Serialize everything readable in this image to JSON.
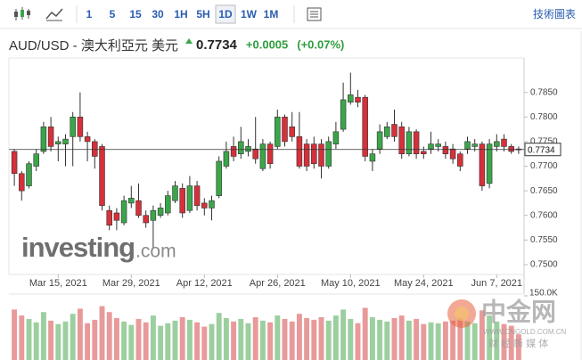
{
  "toolbar": {
    "intervals": [
      "1",
      "5",
      "15",
      "30",
      "1H",
      "5H",
      "1D",
      "1W",
      "1M"
    ],
    "selected": 6,
    "link": "技術圖表"
  },
  "header": {
    "pair": "AUD/USD - 澳大利亞元 美元",
    "price": 0.7734,
    "change": "+0.0005",
    "change_pct": "(+0.07%)"
  },
  "watermarks": {
    "investing": "investing",
    "investing_suffix": ".com",
    "cngold": "中金网",
    "cngold_url": "WWW.CNGOLD.COM.CN",
    "cngold_tagline": "财 经 新 媒 体"
  },
  "chart_data": {
    "type": "candlestick",
    "categories": [
      null,
      null,
      null,
      null,
      null,
      null,
      "Mar 15, 2021",
      null,
      null,
      null,
      null,
      null,
      null,
      null,
      null,
      null,
      "Mar 29, 2021",
      null,
      null,
      null,
      null,
      null,
      null,
      null,
      null,
      null,
      "Apr 12, 2021",
      null,
      null,
      null,
      null,
      null,
      null,
      null,
      null,
      null,
      "Apr 26, 2021",
      null,
      null,
      null,
      null,
      null,
      null,
      null,
      null,
      null,
      "May 10, 2021",
      null,
      null,
      null,
      null,
      null,
      null,
      null,
      null,
      null,
      "May 24, 2021",
      null,
      null,
      null,
      null,
      null,
      null,
      null,
      null,
      null,
      "Jun 7, 2021",
      null,
      null,
      null
    ],
    "open": [
      0.773,
      0.7685,
      0.766,
      0.77,
      0.773,
      0.778,
      0.7745,
      0.7745,
      0.776,
      0.78,
      0.776,
      0.775,
      0.774,
      0.761,
      0.7605,
      0.7585,
      0.7625,
      0.763,
      0.76,
      0.759,
      0.76,
      0.7605,
      0.763,
      0.7655,
      0.761,
      0.766,
      0.7625,
      0.7615,
      0.764,
      0.77,
      0.774,
      0.7725,
      0.773,
      0.7735,
      0.7695,
      0.7745,
      0.774,
      0.78,
      0.778,
      0.776,
      0.7745,
      0.7745,
      0.7745,
      0.77,
      0.7745,
      0.7775,
      0.783,
      0.784,
      0.784,
      0.771,
      0.7735,
      0.776,
      0.7785,
      0.778,
      0.7725,
      0.777,
      0.773,
      0.7735,
      0.774,
      0.774,
      0.7735,
      0.7725,
      0.7735,
      0.774,
      0.7745,
      0.7665,
      0.774,
      0.7755,
      0.774,
      0.7735
    ],
    "high": [
      0.7735,
      0.769,
      0.771,
      0.7735,
      0.779,
      0.78,
      0.776,
      0.7765,
      0.781,
      0.785,
      0.777,
      0.7755,
      0.7745,
      0.762,
      0.7615,
      0.764,
      0.766,
      0.7665,
      0.761,
      0.762,
      0.7625,
      0.765,
      0.767,
      0.7665,
      0.768,
      0.767,
      0.7635,
      0.764,
      0.772,
      0.775,
      0.776,
      0.778,
      0.7755,
      0.78,
      0.7755,
      0.775,
      0.7815,
      0.7805,
      0.781,
      0.781,
      0.7755,
      0.776,
      0.7755,
      0.776,
      0.779,
      0.787,
      0.789,
      0.7855,
      0.7845,
      0.7735,
      0.7785,
      0.779,
      0.7815,
      0.779,
      0.778,
      0.7775,
      0.774,
      0.777,
      0.7755,
      0.775,
      0.7745,
      0.773,
      0.776,
      0.7755,
      0.775,
      0.7755,
      0.7765,
      0.7765,
      0.7745,
      0.774
    ],
    "low": [
      0.766,
      0.763,
      0.7655,
      0.769,
      0.7725,
      0.773,
      0.771,
      0.77,
      0.77,
      0.775,
      0.771,
      0.7695,
      0.761,
      0.757,
      0.757,
      0.758,
      0.7615,
      0.7595,
      0.7575,
      0.7535,
      0.7595,
      0.76,
      0.7625,
      0.7595,
      0.7605,
      0.761,
      0.76,
      0.759,
      0.7635,
      0.7695,
      0.771,
      0.7715,
      0.772,
      0.7705,
      0.769,
      0.7695,
      0.7735,
      0.774,
      0.775,
      0.7695,
      0.769,
      0.7695,
      0.7675,
      0.7695,
      0.7735,
      0.777,
      0.7825,
      0.782,
      0.771,
      0.769,
      0.7725,
      0.7755,
      0.775,
      0.7715,
      0.772,
      0.7715,
      0.7715,
      0.7725,
      0.773,
      0.7715,
      0.7705,
      0.769,
      0.7725,
      0.773,
      0.765,
      0.7655,
      0.773,
      0.773,
      0.7725,
      0.7725
    ],
    "close": [
      0.7685,
      0.765,
      0.7705,
      0.7725,
      0.778,
      0.774,
      0.775,
      0.7755,
      0.78,
      0.776,
      0.775,
      0.772,
      0.762,
      0.758,
      0.759,
      0.763,
      0.7635,
      0.76,
      0.7585,
      0.761,
      0.7615,
      0.764,
      0.766,
      0.7605,
      0.766,
      0.762,
      0.7615,
      0.763,
      0.771,
      0.773,
      0.772,
      0.775,
      0.774,
      0.7715,
      0.7745,
      0.7705,
      0.78,
      0.775,
      0.776,
      0.77,
      0.77,
      0.7705,
      0.77,
      0.775,
      0.777,
      0.7835,
      0.7845,
      0.783,
      0.772,
      0.7725,
      0.777,
      0.778,
      0.776,
      0.7725,
      0.777,
      0.7725,
      0.7725,
      0.7745,
      0.7745,
      0.7725,
      0.7715,
      0.77,
      0.775,
      0.7745,
      0.766,
      0.7745,
      0.775,
      0.774,
      0.773,
      0.7734
    ],
    "up_color": "#3ba54a",
    "down_color": "#d6303a",
    "ylim": [
      0.748,
      0.792
    ],
    "yticks": [
      {
        "value": 0.785,
        "label": "0.7850"
      },
      {
        "value": 0.78,
        "label": "0.7800"
      },
      {
        "value": 0.775,
        "label": "0.7750"
      },
      {
        "value": 0.77,
        "label": "0.7700"
      },
      {
        "value": 0.765,
        "label": "0.7650"
      },
      {
        "value": 0.76,
        "label": "0.7600"
      },
      {
        "value": 0.755,
        "label": "0.7550"
      },
      {
        "value": 0.75,
        "label": "0.7500"
      }
    ],
    "last_price": 0.7734,
    "volume": {
      "values": [
        118000,
        104000,
        96000,
        88000,
        112000,
        92000,
        84000,
        90000,
        108000,
        120000,
        86000,
        94000,
        126000,
        112000,
        98000,
        90000,
        82000,
        96000,
        88000,
        104000,
        80000,
        86000,
        92000,
        100000,
        94000,
        88000,
        78000,
        84000,
        110000,
        98000,
        90000,
        96000,
        86000,
        100000,
        92000,
        88000,
        104000,
        96000,
        90000,
        108000,
        98000,
        94000,
        100000,
        92000,
        104000,
        118000,
        96000,
        86000,
        122000,
        100000,
        94000,
        90000,
        98000,
        104000,
        92000,
        96000,
        84000,
        88000,
        86000,
        90000,
        92000,
        98000,
        90000,
        86000,
        116000,
        104000,
        90000,
        84000,
        80000,
        60000
      ],
      "up_color": "#9ccf9f",
      "down_color": "#e89a9a",
      "ylim": [
        0,
        150000
      ],
      "yticks": [
        {
          "value": 150000,
          "label": "150.0K"
        }
      ]
    }
  }
}
